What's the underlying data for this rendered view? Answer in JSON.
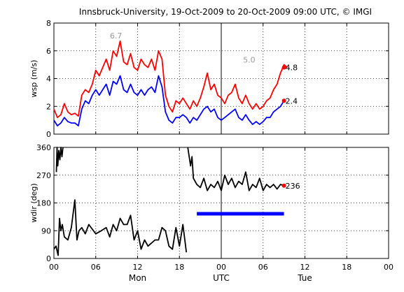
{
  "chart_data": {
    "title": "Innsbruck-University, 19-Oct-2009 to 20-Oct-2009 09:00 UTC, © IMGI",
    "x_axis": {
      "range_hours": [
        0,
        48
      ],
      "tick_labels": [
        "00",
        "06",
        "12",
        "18",
        "00",
        "06",
        "12",
        "18",
        "00"
      ],
      "day_labels": [
        "Mon",
        "UTC",
        "Tue"
      ]
    },
    "panels": [
      {
        "type": "line",
        "ylabel": "wsp (m/s)",
        "ylim": [
          0,
          8
        ],
        "yticks": [
          0,
          2,
          4,
          6,
          8
        ],
        "grid": true,
        "series": [
          {
            "color": "#ff0000",
            "x": [
              0,
              0.5,
              1,
              1.5,
              2,
              2.5,
              3,
              3.5,
              4,
              4.5,
              5,
              5.5,
              6,
              6.5,
              7,
              7.5,
              8,
              8.5,
              9,
              9.5,
              10,
              10.5,
              11,
              11.5,
              12,
              12.5,
              13,
              13.5,
              14,
              14.5,
              15,
              15.5,
              16,
              16.5,
              17,
              17.5,
              18,
              18.5,
              19,
              19.5,
              20,
              20.5,
              21,
              21.5,
              22,
              22.5,
              23,
              23.5,
              24,
              24.5,
              25,
              25.5,
              26,
              26.5,
              27,
              27.5,
              28,
              28.5,
              29,
              29.5,
              30,
              30.5,
              31,
              31.5,
              32,
              32.5,
              33,
              33.5
            ],
            "values": [
              1.8,
              1.2,
              1.4,
              2.2,
              1.6,
              1.4,
              1.5,
              1.3,
              2.8,
              3.2,
              3.0,
              3.6,
              4.6,
              4.2,
              4.8,
              5.4,
              4.6,
              6.0,
              5.6,
              6.7,
              5.2,
              5.0,
              5.8,
              4.8,
              4.6,
              5.4,
              5.0,
              4.8,
              5.4,
              4.6,
              6.0,
              5.4,
              2.8,
              2.0,
              1.6,
              2.4,
              2.2,
              2.6,
              2.2,
              1.8,
              2.4,
              2.0,
              2.6,
              3.4,
              4.4,
              3.2,
              3.6,
              2.8,
              2.6,
              2.2,
              2.8,
              3.0,
              3.6,
              2.6,
              2.2,
              2.8,
              2.2,
              1.8,
              2.2,
              1.8,
              2.0,
              2.4,
              2.6,
              3.2,
              3.6,
              4.4,
              5.0,
              4.8
            ]
          },
          {
            "color": "#0000ff",
            "x": [
              0,
              0.5,
              1,
              1.5,
              2,
              2.5,
              3,
              3.5,
              4,
              4.5,
              5,
              5.5,
              6,
              6.5,
              7,
              7.5,
              8,
              8.5,
              9,
              9.5,
              10,
              10.5,
              11,
              11.5,
              12,
              12.5,
              13,
              13.5,
              14,
              14.5,
              15,
              15.5,
              16,
              16.5,
              17,
              17.5,
              18,
              18.5,
              19,
              19.5,
              20,
              20.5,
              21,
              21.5,
              22,
              22.5,
              23,
              23.5,
              24,
              24.5,
              25,
              25.5,
              26,
              26.5,
              27,
              27.5,
              28,
              28.5,
              29,
              29.5,
              30,
              30.5,
              31,
              31.5,
              32,
              32.5,
              33
            ],
            "values": [
              1.0,
              0.6,
              0.8,
              1.2,
              0.9,
              0.8,
              0.8,
              0.6,
              1.8,
              2.4,
              2.2,
              2.8,
              3.2,
              2.8,
              3.2,
              3.6,
              2.8,
              3.8,
              3.6,
              4.2,
              3.2,
              3.0,
              3.6,
              3.0,
              2.8,
              3.2,
              2.8,
              3.2,
              3.4,
              3.0,
              4.2,
              3.4,
              1.6,
              1.0,
              0.8,
              1.2,
              1.2,
              1.4,
              1.2,
              0.8,
              1.2,
              1.0,
              1.4,
              1.8,
              2.0,
              1.6,
              1.8,
              1.2,
              1.0,
              1.2,
              1.4,
              1.6,
              1.8,
              1.2,
              1.0,
              1.4,
              1.0,
              0.7,
              0.9,
              0.7,
              0.9,
              1.2,
              1.2,
              1.6,
              1.8,
              2.0,
              2.4
            ]
          }
        ],
        "annotations": [
          {
            "text": "6.7",
            "x": 8.9,
            "y": 6.7,
            "color": "#999999"
          },
          {
            "text": "5.0",
            "x": 28.0,
            "y": 4.95,
            "color": "#999999"
          },
          {
            "text": "4.8",
            "x": 33.0,
            "y": 4.8,
            "color": "#000000",
            "marker": "#ff0000"
          },
          {
            "text": "2.4",
            "x": 33.0,
            "y": 2.4,
            "color": "#000000",
            "marker": "#ff0000"
          }
        ]
      },
      {
        "type": "line",
        "ylabel": "wdir (deg)",
        "ylim": [
          0,
          360
        ],
        "yticks": [
          0,
          90,
          180,
          270,
          360
        ],
        "grid": true,
        "series": [
          {
            "color": "#000000",
            "x": [
              0,
              0.3,
              0.6,
              0.8,
              1.0,
              1.2,
              1.5,
              2.0,
              2.5,
              3.0,
              3.3,
              3.6,
              4.0,
              4.5,
              5.0,
              6.0,
              6.8,
              7.5,
              8.0,
              8.5,
              9.0,
              9.5,
              10.0,
              10.5,
              11.0,
              11.5,
              12.0,
              12.5,
              13.0,
              13.5,
              14.0,
              14.5,
              15.0,
              15.5,
              16.0,
              16.5,
              17.0,
              17.5,
              18.0,
              18.5,
              19.0
            ],
            "values": [
              30,
              40,
              10,
              130,
              90,
              110,
              70,
              60,
              100,
              190,
              60,
              90,
              100,
              80,
              110,
              80,
              90,
              100,
              70,
              110,
              90,
              130,
              110,
              110,
              140,
              60,
              90,
              30,
              60,
              40,
              50,
              60,
              60,
              100,
              90,
              40,
              30,
              100,
              40,
              110,
              20
            ]
          },
          {
            "color": "#000000",
            "x": [
              0.35,
              0.45,
              0.55,
              0.7,
              0.85,
              1.0,
              1.15,
              1.3
            ],
            "values": [
              280,
              360,
              300,
              350,
              320,
              360,
              330,
              360
            ]
          },
          {
            "color": "#000000",
            "x": [
              19.2,
              19.4,
              19.6,
              19.8,
              20.0,
              20.5,
              21.0,
              21.5,
              22.0,
              22.5,
              23.0,
              23.5,
              24.0,
              24.5,
              25.0,
              25.5,
              26.0,
              26.5,
              27.0,
              27.5,
              28.0,
              28.5,
              29.0,
              29.5,
              30.0,
              30.5,
              31.0,
              31.5,
              32.0,
              32.5,
              33.0
            ],
            "values": [
              360,
              330,
              300,
              330,
              260,
              240,
              230,
              260,
              220,
              240,
              230,
              250,
              220,
              270,
              240,
              260,
              230,
              250,
              240,
              280,
              220,
              240,
              230,
              260,
              220,
              240,
              230,
              240,
              225,
              240,
              236
            ]
          },
          {
            "color": "#0000ff",
            "thick": true,
            "x": [
              20.5,
              33.0
            ],
            "values": [
              145,
              145
            ]
          }
        ],
        "annotations": [
          {
            "text": "236",
            "x": 33.0,
            "y": 236,
            "color": "#000000",
            "marker": "#ff0000"
          }
        ]
      }
    ]
  }
}
